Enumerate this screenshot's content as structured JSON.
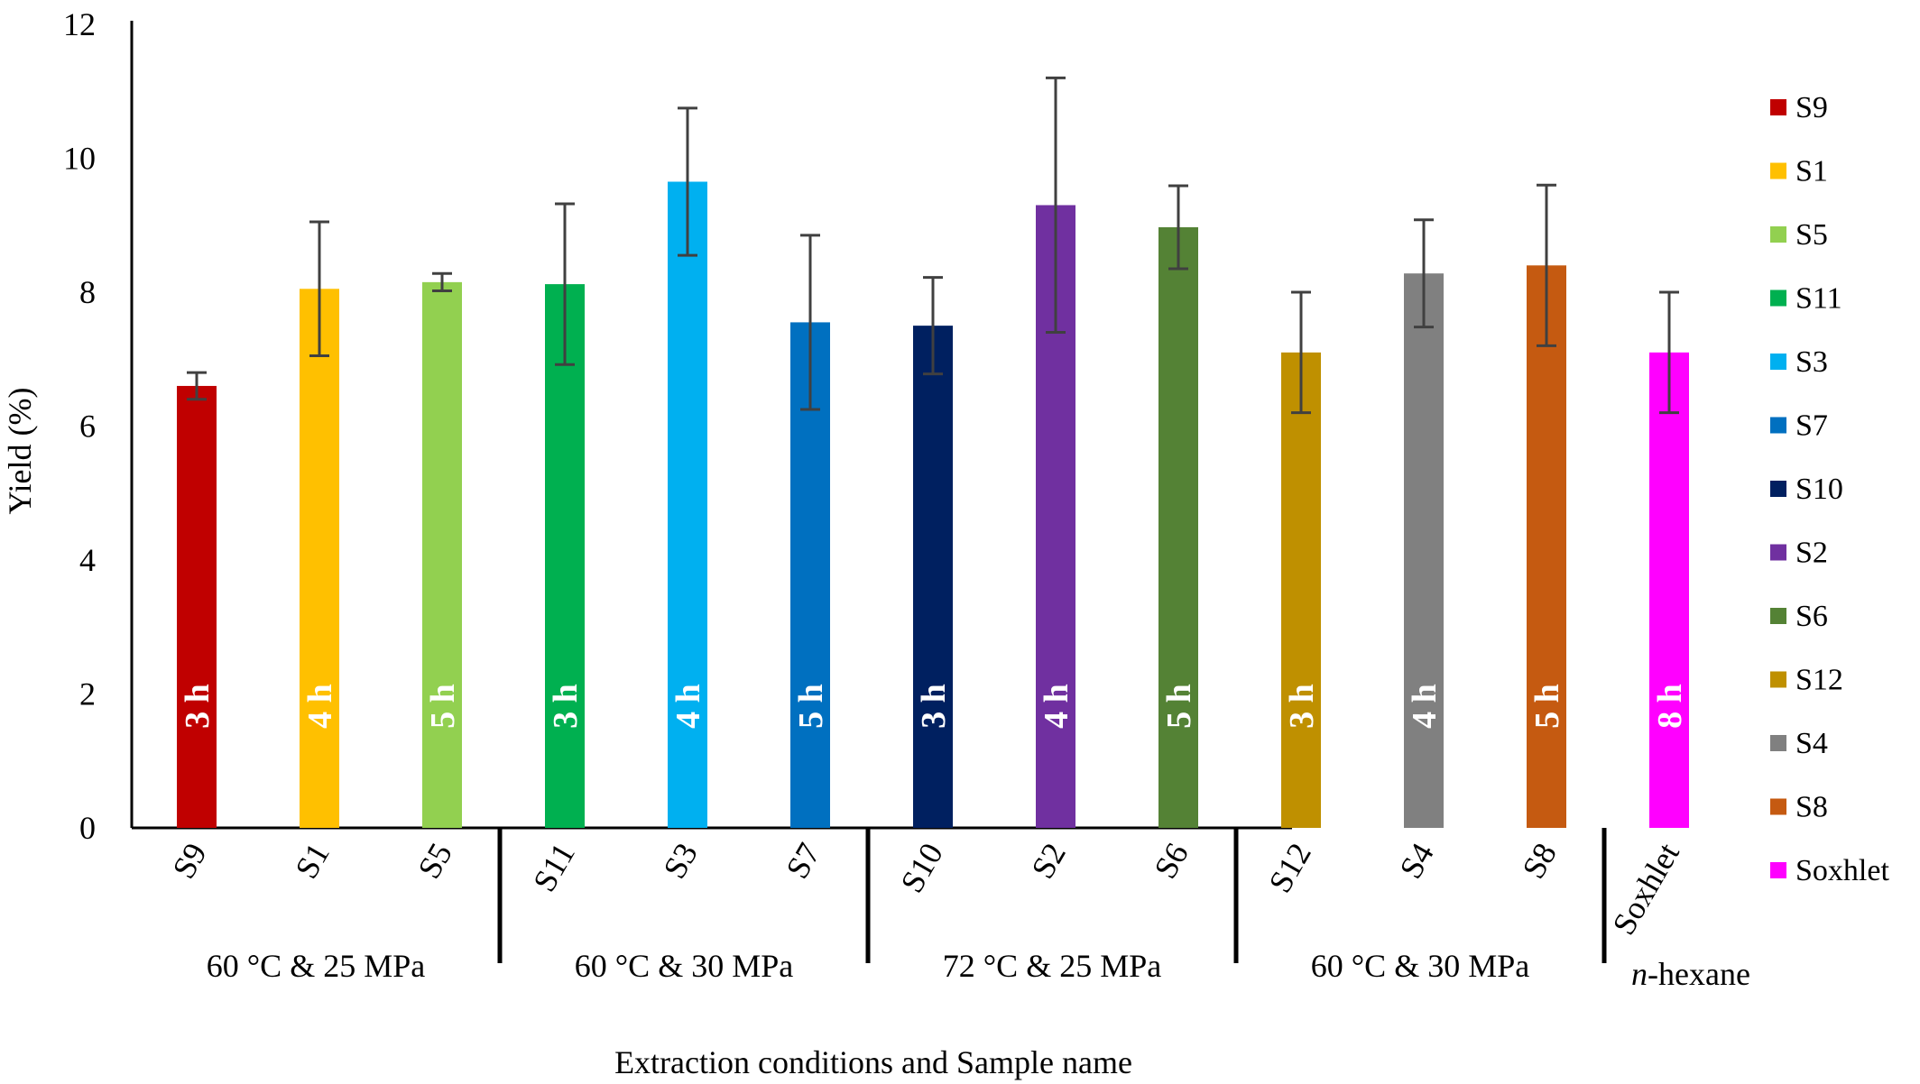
{
  "chart_data": {
    "type": "bar",
    "title": "",
    "xlabel": "Extraction conditions and Sample name",
    "ylabel": "Yield (%)",
    "ylim": [
      0,
      12
    ],
    "yticks": [
      "0",
      "2",
      "4",
      "6",
      "8",
      "10",
      "12"
    ],
    "grid": false,
    "legend_position": "right",
    "categories": [
      "S9",
      "S1",
      "S5",
      "S11",
      "S3",
      "S7",
      "S10",
      "S2",
      "S6",
      "S12",
      "S4",
      "S8",
      "Soxhlet"
    ],
    "values": [
      6.6,
      8.05,
      8.15,
      8.12,
      9.65,
      7.55,
      7.5,
      9.3,
      8.97,
      7.1,
      8.28,
      8.4,
      7.1
    ],
    "errors": [
      0.2,
      1.0,
      0.13,
      1.2,
      1.1,
      1.3,
      0.72,
      1.9,
      0.62,
      0.9,
      0.8,
      1.2,
      0.9
    ],
    "bar_labels": [
      "3 h",
      "4 h",
      "5 h",
      "3 h",
      "4 h",
      "5 h",
      "3 h",
      "4 h",
      "5 h",
      "3 h",
      "4 h",
      "5 h",
      "8 h"
    ],
    "colors": [
      "#c00000",
      "#ffc000",
      "#92d050",
      "#00b050",
      "#00b0f0",
      "#0070c0",
      "#002060",
      "#7030a0",
      "#548235",
      "#bf9000",
      "#808080",
      "#c55a11",
      "#ff00ff"
    ],
    "groups": [
      {
        "label": "60 °C & 25 MPa",
        "start": 0,
        "end": 2
      },
      {
        "label": "60 °C & 30 MPa",
        "start": 3,
        "end": 5
      },
      {
        "label": "72 °C & 25 MPa",
        "start": 6,
        "end": 8
      },
      {
        "label": "60 °C & 30 MPa",
        "start": 9,
        "end": 11
      },
      {
        "label": "n-hexane",
        "label_italic": "n",
        "label_rest": "-hexane",
        "start": 12,
        "end": 12
      }
    ],
    "legend": [
      "S9",
      "S1",
      "S5",
      "S11",
      "S3",
      "S7",
      "S10",
      "S2",
      "S6",
      "S12",
      "S4",
      "S8",
      "Soxhlet"
    ]
  }
}
